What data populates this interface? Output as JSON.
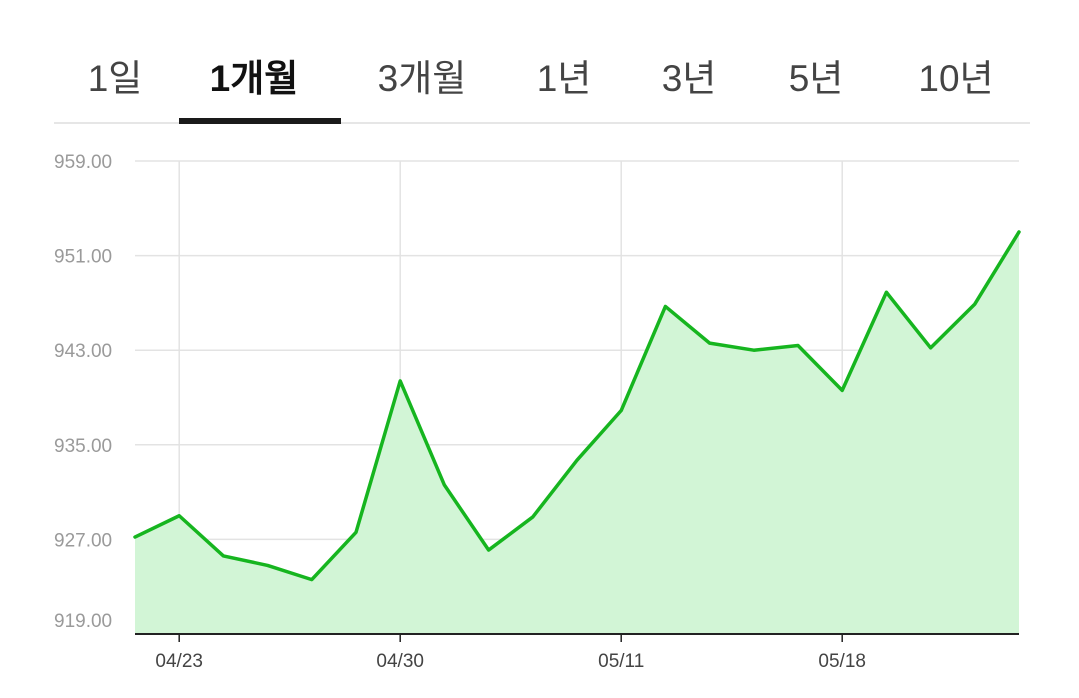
{
  "tabs": [
    {
      "label": "1일",
      "active": false
    },
    {
      "label": "1개월",
      "active": true
    },
    {
      "label": "3개월",
      "active": false
    },
    {
      "label": "1년",
      "active": false
    },
    {
      "label": "3년",
      "active": false
    },
    {
      "label": "5년",
      "active": false
    },
    {
      "label": "10년",
      "active": false
    }
  ],
  "colors": {
    "line": "#16b51f",
    "fill": "#d2f5d6",
    "grid": "#e3e3e3",
    "axis": "#222222"
  },
  "chart_data": {
    "type": "area",
    "title": "",
    "xlabel": "",
    "ylabel": "",
    "ylim": [
      919,
      959
    ],
    "y_ticks": [
      "959.00",
      "951.00",
      "943.00",
      "935.00",
      "927.00",
      "919.00"
    ],
    "x_ticks": [
      "04/23",
      "04/30",
      "05/11",
      "05/18"
    ],
    "grid": true,
    "x_points": [
      "",
      "04/23",
      "",
      "",
      "",
      "",
      "04/30",
      "",
      "",
      "",
      "",
      "05/11",
      "",
      "",
      "",
      "",
      "05/18",
      "",
      "",
      "",
      ""
    ],
    "values": [
      927.2,
      929.0,
      925.6,
      924.8,
      923.6,
      927.6,
      940.4,
      931.6,
      926.1,
      928.9,
      933.7,
      937.9,
      946.7,
      943.6,
      943.0,
      943.4,
      939.6,
      947.9,
      943.2,
      946.9,
      953.0
    ]
  }
}
